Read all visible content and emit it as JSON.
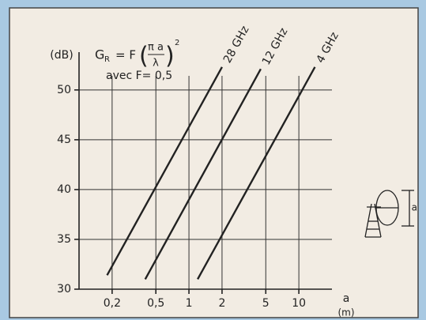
{
  "chart_data": {
    "type": "line",
    "ylabel": "(dB)",
    "xlabel": "a",
    "xunit": "(m)",
    "formula": {
      "lhs": "G",
      "sub": "R",
      "rhs": "= F",
      "numerator": "π a",
      "denominator": "λ",
      "exponent": "2"
    },
    "note": "avec F= 0,5",
    "antenna_label": "a",
    "log_x": true,
    "grid": true,
    "xlim": [
      0.1,
      20
    ],
    "ylim": [
      30,
      53
    ],
    "xticks": [
      {
        "value": 0.2,
        "label": "0,2"
      },
      {
        "value": 0.5,
        "label": "0,5"
      },
      1,
      2,
      5,
      10
    ],
    "yticks": [
      30,
      35,
      40,
      45,
      50
    ],
    "series": [
      {
        "name": "28 GHz",
        "color": "#222222",
        "x": [
          0.18,
          2.0
        ],
        "y": [
          31.4,
          52.3
        ]
      },
      {
        "name": "12 GHz",
        "color": "#222222",
        "x": [
          0.4,
          4.5
        ],
        "y": [
          31.0,
          52.1
        ]
      },
      {
        "name": "4 GHz",
        "color": "#222222",
        "x": [
          1.2,
          14
        ],
        "y": [
          31.0,
          52.3
        ]
      }
    ]
  }
}
